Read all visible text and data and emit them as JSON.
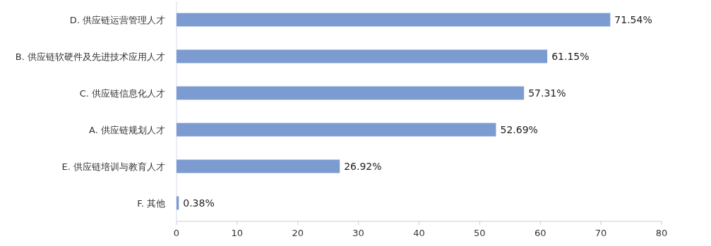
{
  "chart_data": {
    "type": "bar",
    "orientation": "horizontal",
    "categories": [
      "D. 供应链运营管理人才",
      "B. 供应链软硬件及先进技术应用人才",
      "C. 供应链信息化人才",
      "A. 供应链规划人才",
      "E. 供应链培训与教育人才",
      "F. 其他"
    ],
    "values": [
      71.54,
      61.15,
      57.31,
      52.69,
      26.92,
      0.38
    ],
    "value_labels": [
      "71.54%",
      "61.15%",
      "57.31%",
      "52.69%",
      "26.92%",
      "0.38%"
    ],
    "color": "#7b9bd1",
    "xlim": [
      0,
      80
    ],
    "xticks": [
      0,
      10,
      20,
      30,
      40,
      50,
      60,
      70,
      80
    ],
    "grid": false
  }
}
